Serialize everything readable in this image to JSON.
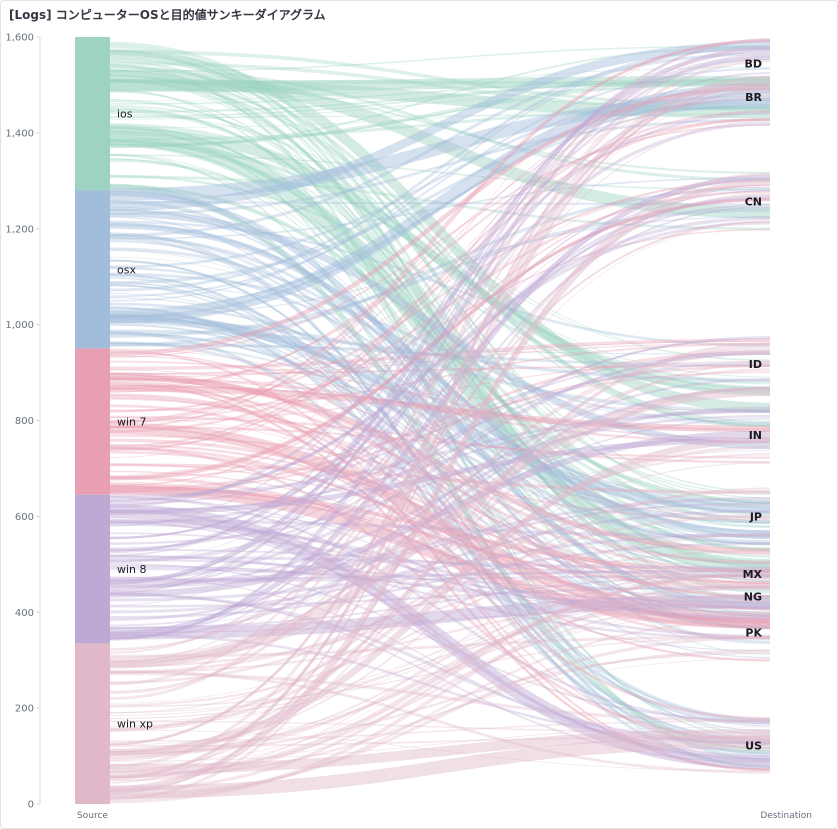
{
  "panel": {
    "title": "[Logs] コンピューターOSと目的値サンキーダイアグラム"
  },
  "chart_data": {
    "type": "sankey",
    "title": "[Logs] コンピューターOSと目的値サンキーダイアグラム",
    "y_axis": {
      "min": 0,
      "max": 1600,
      "ticks": [
        "0",
        "200",
        "400",
        "600",
        "800",
        "1,000",
        "1,200",
        "1,400",
        "1,600"
      ]
    },
    "axis_captions": {
      "source": "Source",
      "destination": "Destination"
    },
    "sources": [
      {
        "name": "ios",
        "value": 320,
        "color": "#9ed3c2"
      },
      {
        "name": "osx",
        "value": 330,
        "color": "#a2bcdb"
      },
      {
        "name": "win 7",
        "value": 305,
        "color": "#e89fb1"
      },
      {
        "name": "win 8",
        "value": 310,
        "color": "#bea9d5"
      },
      {
        "name": "win xp",
        "value": 335,
        "color": "#e0b8c9"
      }
    ],
    "destinations": [
      {
        "name": "US",
        "label_value": 122
      },
      {
        "name": "PK",
        "label_value": 358
      },
      {
        "name": "NG",
        "label_value": 433
      },
      {
        "name": "MX",
        "label_value": 480
      },
      {
        "name": "JP",
        "label_value": 600
      },
      {
        "name": "IN",
        "label_value": 770
      },
      {
        "name": "ID",
        "label_value": 918
      },
      {
        "name": "CN",
        "label_value": 1257
      },
      {
        "name": "BR",
        "label_value": 1475
      },
      {
        "name": "BD",
        "label_value": 1545
      }
    ],
    "grid": false,
    "legend": "none"
  }
}
